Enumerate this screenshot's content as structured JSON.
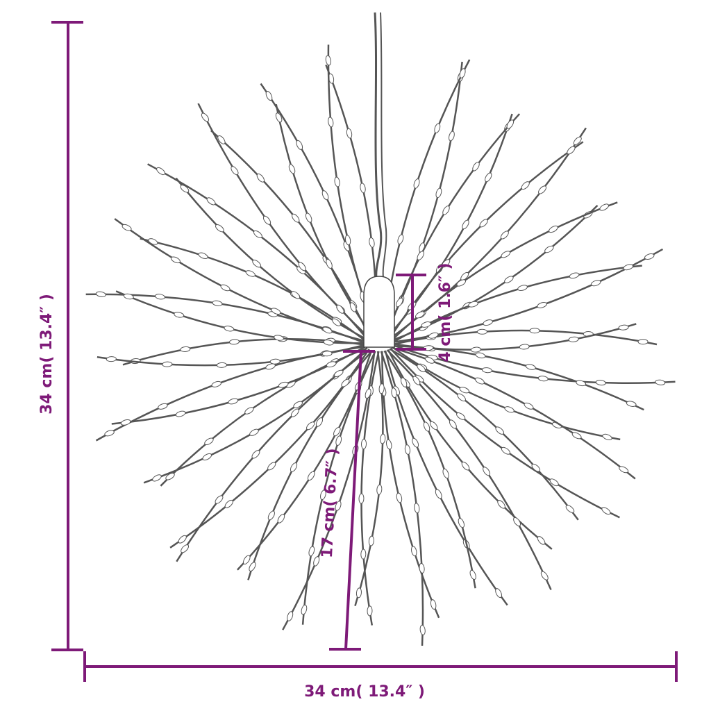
{
  "product": {
    "name": "Firework starburst light"
  },
  "dimensions": {
    "height_label": "34 cm( 13.4″ )",
    "width_label": "34 cm( 13.4″ )",
    "cap_height_label": "4 cm( 1.6″ )",
    "ray_length_label": "17 cm( 6.7″ )"
  },
  "colors": {
    "dimension": "#7e1a78",
    "wire": "#555555"
  }
}
